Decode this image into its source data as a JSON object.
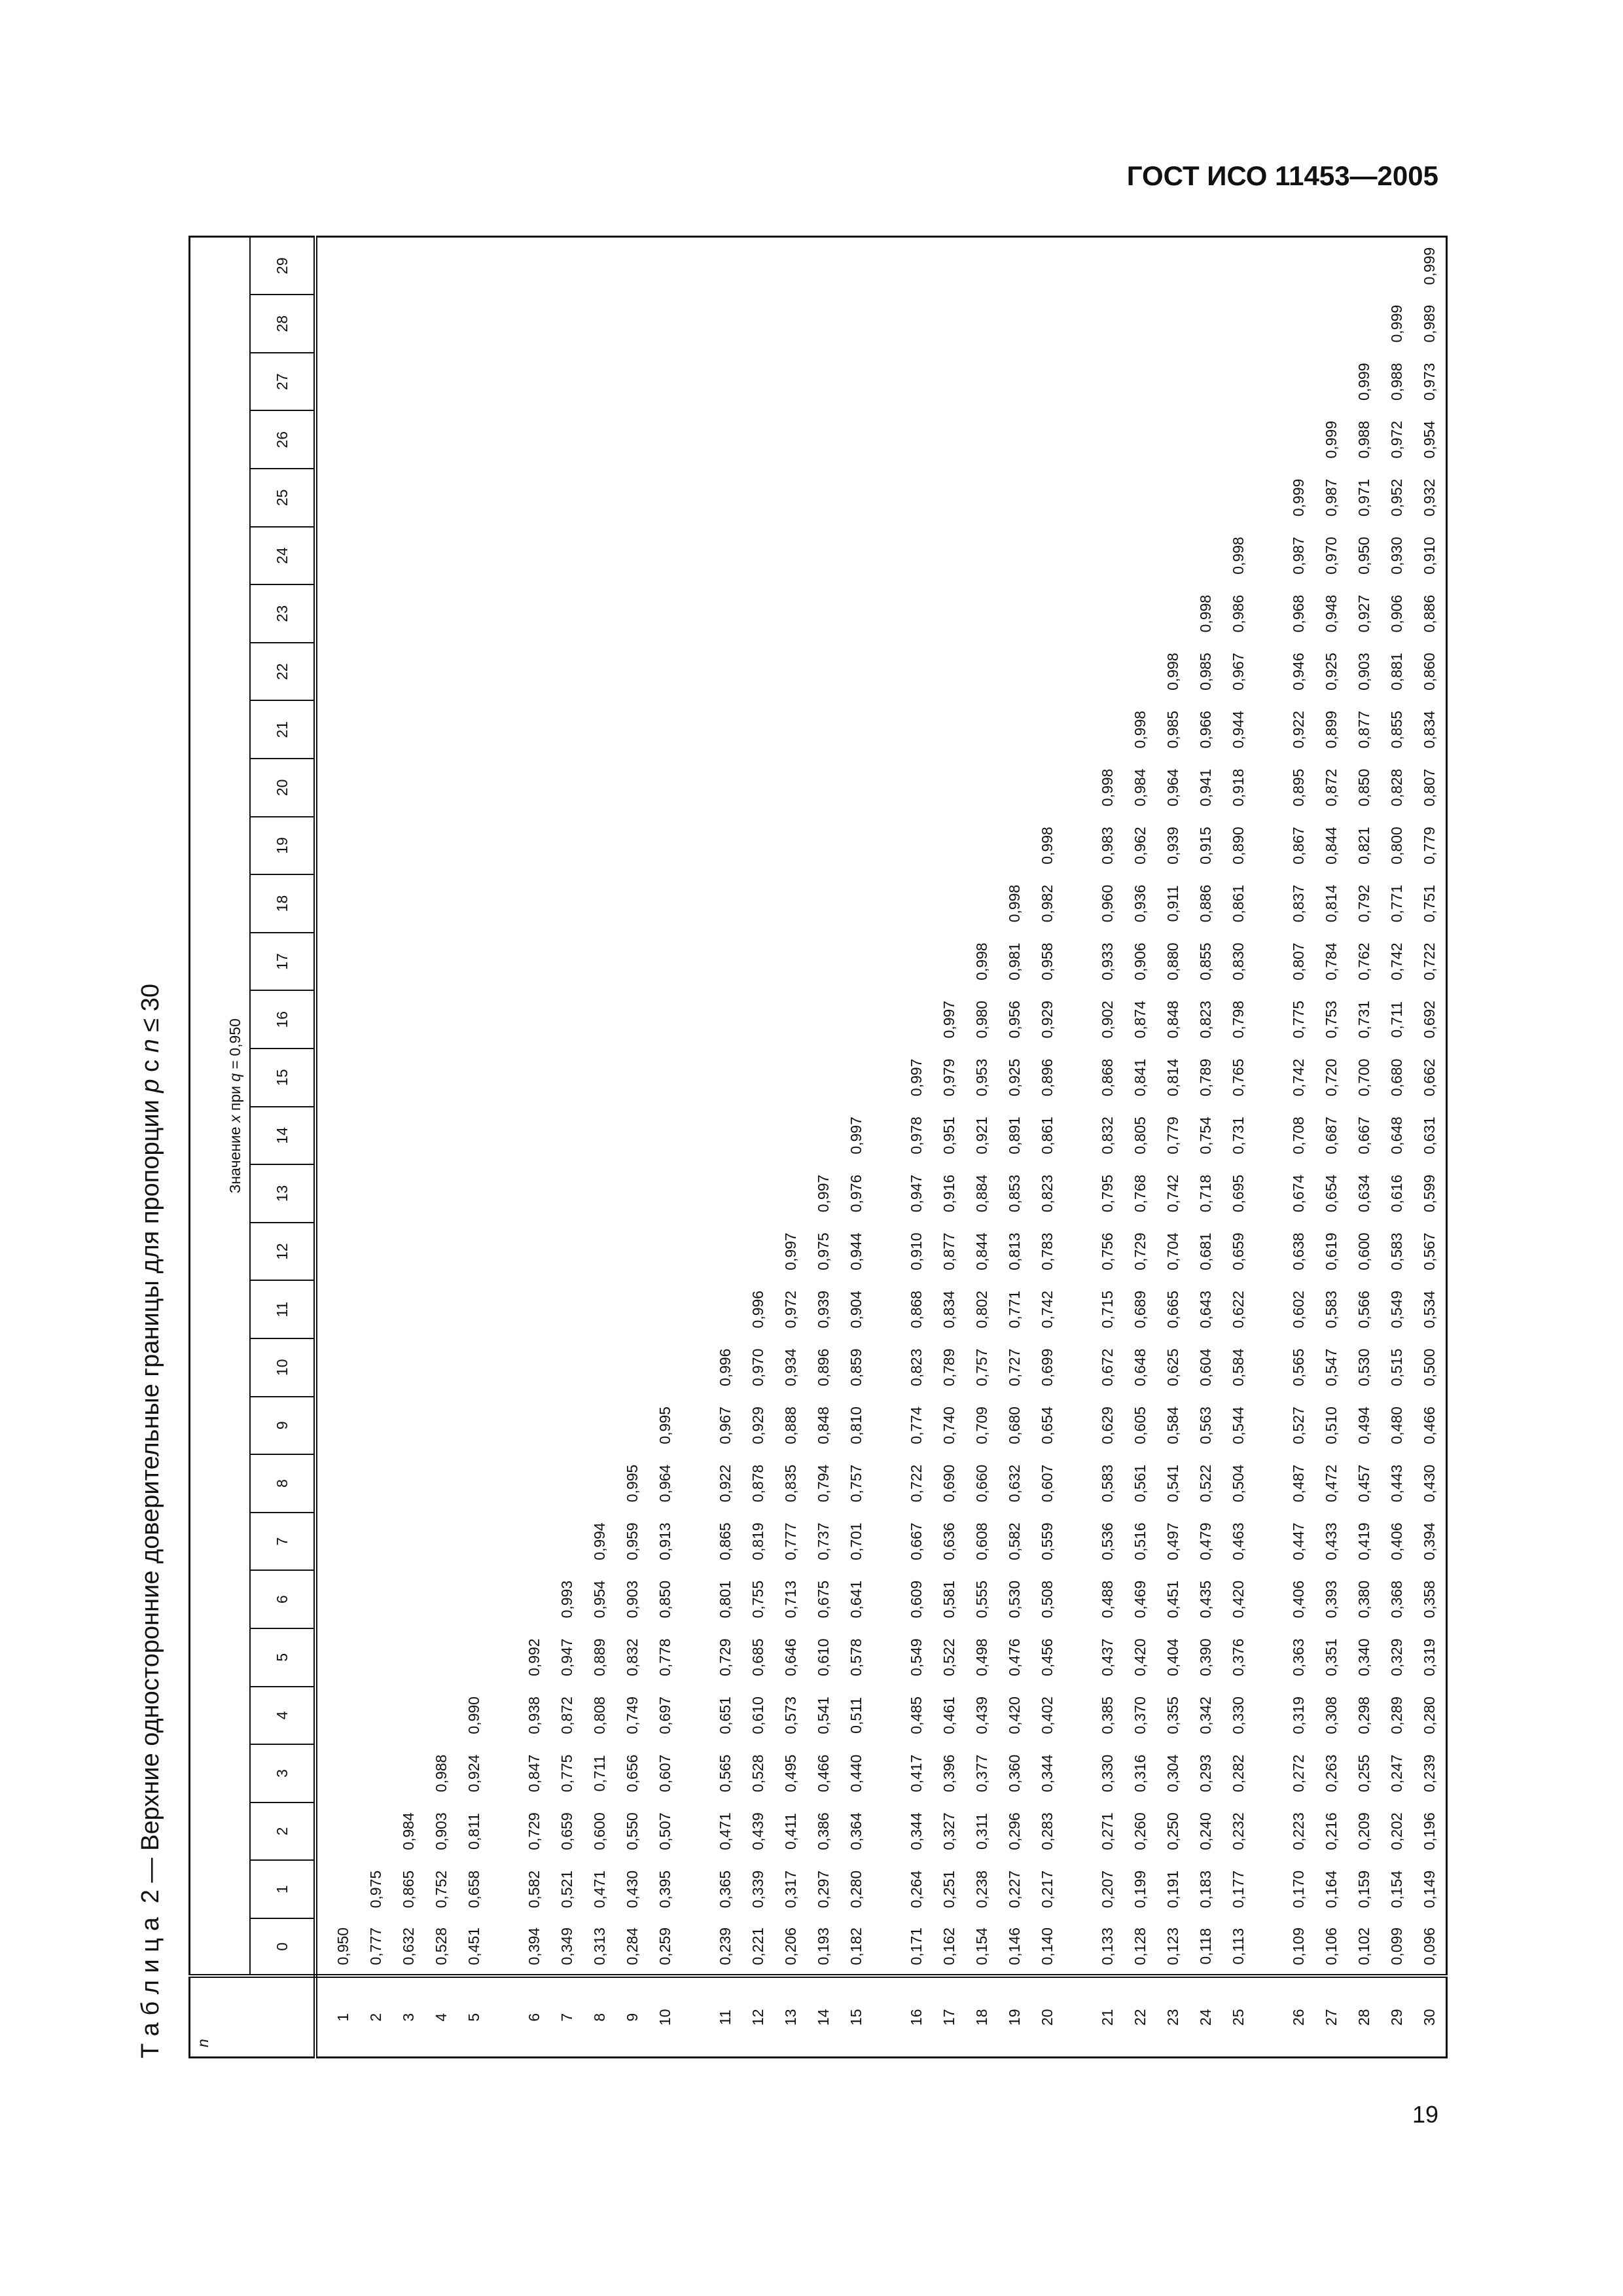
{
  "header": {
    "title": "ГОСТ ИСО 11453—2005"
  },
  "table": {
    "caption": [
      "Т а б л и ц а  2 — Верхние односторонние доверительные границы для пропорции ",
      "p",
      " с ",
      "n",
      " ≤ 30"
    ],
    "row_header": "n",
    "column_group": [
      "Значение ",
      "x",
      " при ",
      "q",
      " = 0,950"
    ],
    "columns": [
      0,
      1,
      2,
      3,
      4,
      5,
      6,
      7,
      8,
      9,
      10,
      11,
      12,
      13,
      14,
      15,
      16,
      17,
      18,
      19,
      20,
      21,
      22,
      23,
      24,
      25,
      26,
      27,
      28,
      29
    ],
    "rows": [
      {
        "n": 1,
        "values": [
          "0,950"
        ]
      },
      {
        "n": 2,
        "values": [
          "0,777",
          "0,975"
        ]
      },
      {
        "n": 3,
        "values": [
          "0,632",
          "0,865",
          "0,984"
        ]
      },
      {
        "n": 4,
        "values": [
          "0,528",
          "0,752",
          "0,903",
          "0,988"
        ]
      },
      {
        "n": 5,
        "values": [
          "0,451",
          "0,658",
          "0,811",
          "0,924",
          "0,990"
        ]
      },
      {
        "n": 6,
        "values": [
          "0,394",
          "0,582",
          "0,729",
          "0,847",
          "0,938",
          "0,992"
        ]
      },
      {
        "n": 7,
        "values": [
          "0,349",
          "0,521",
          "0,659",
          "0,775",
          "0,872",
          "0,947",
          "0,993"
        ]
      },
      {
        "n": 8,
        "values": [
          "0,313",
          "0,471",
          "0,600",
          "0,711",
          "0,808",
          "0,889",
          "0,954",
          "0,994"
        ]
      },
      {
        "n": 9,
        "values": [
          "0,284",
          "0,430",
          "0,550",
          "0,656",
          "0,749",
          "0,832",
          "0,903",
          "0,959",
          "0,995"
        ]
      },
      {
        "n": 10,
        "values": [
          "0,259",
          "0,395",
          "0,507",
          "0,607",
          "0,697",
          "0,778",
          "0,850",
          "0,913",
          "0,964",
          "0,995"
        ]
      },
      {
        "n": 11,
        "values": [
          "0,239",
          "0,365",
          "0,471",
          "0,565",
          "0,651",
          "0,729",
          "0,801",
          "0,865",
          "0,922",
          "0,967",
          "0,996"
        ]
      },
      {
        "n": 12,
        "values": [
          "0,221",
          "0,339",
          "0,439",
          "0,528",
          "0,610",
          "0,685",
          "0,755",
          "0,819",
          "0,878",
          "0,929",
          "0,970",
          "0,996"
        ]
      },
      {
        "n": 13,
        "values": [
          "0,206",
          "0,317",
          "0,411",
          "0,495",
          "0,573",
          "0,646",
          "0,713",
          "0,777",
          "0,835",
          "0,888",
          "0,934",
          "0,972",
          "0,997"
        ]
      },
      {
        "n": 14,
        "values": [
          "0,193",
          "0,297",
          "0,386",
          "0,466",
          "0,541",
          "0,610",
          "0,675",
          "0,737",
          "0,794",
          "0,848",
          "0,896",
          "0,939",
          "0,975",
          "0,997"
        ]
      },
      {
        "n": 15,
        "values": [
          "0,182",
          "0,280",
          "0,364",
          "0,440",
          "0,511",
          "0,578",
          "0,641",
          "0,701",
          "0,757",
          "0,810",
          "0,859",
          "0,904",
          "0,944",
          "0,976",
          "0,997"
        ]
      },
      {
        "n": 16,
        "values": [
          "0,171",
          "0,264",
          "0,344",
          "0,417",
          "0,485",
          "0,549",
          "0,609",
          "0,667",
          "0,722",
          "0,774",
          "0,823",
          "0,868",
          "0,910",
          "0,947",
          "0,978",
          "0,997"
        ]
      },
      {
        "n": 17,
        "values": [
          "0,162",
          "0,251",
          "0,327",
          "0,396",
          "0,461",
          "0,522",
          "0,581",
          "0,636",
          "0,690",
          "0,740",
          "0,789",
          "0,834",
          "0,877",
          "0,916",
          "0,951",
          "0,979",
          "0,997"
        ]
      },
      {
        "n": 18,
        "values": [
          "0,154",
          "0,238",
          "0,311",
          "0,377",
          "0,439",
          "0,498",
          "0,555",
          "0,608",
          "0,660",
          "0,709",
          "0,757",
          "0,802",
          "0,844",
          "0,884",
          "0,921",
          "0,953",
          "0,980",
          "0,998"
        ]
      },
      {
        "n": 19,
        "values": [
          "0,146",
          "0,227",
          "0,296",
          "0,360",
          "0,420",
          "0,476",
          "0,530",
          "0,582",
          "0,632",
          "0,680",
          "0,727",
          "0,771",
          "0,813",
          "0,853",
          "0,891",
          "0,925",
          "0,956",
          "0,981",
          "0,998"
        ]
      },
      {
        "n": 20,
        "values": [
          "0,140",
          "0,217",
          "0,283",
          "0,344",
          "0,402",
          "0,456",
          "0,508",
          "0,559",
          "0,607",
          "0,654",
          "0,699",
          "0,742",
          "0,783",
          "0,823",
          "0,861",
          "0,896",
          "0,929",
          "0,958",
          "0,982",
          "0,998"
        ]
      },
      {
        "n": 21,
        "values": [
          "0,133",
          "0,207",
          "0,271",
          "0,330",
          "0,385",
          "0,437",
          "0,488",
          "0,536",
          "0,583",
          "0,629",
          "0,672",
          "0,715",
          "0,756",
          "0,795",
          "0,832",
          "0,868",
          "0,902",
          "0,933",
          "0,960",
          "0,983",
          "0,998"
        ]
      },
      {
        "n": 22,
        "values": [
          "0,128",
          "0,199",
          "0,260",
          "0,316",
          "0,370",
          "0,420",
          "0,469",
          "0,516",
          "0,561",
          "0,605",
          "0,648",
          "0,689",
          "0,729",
          "0,768",
          "0,805",
          "0,841",
          "0,874",
          "0,906",
          "0,936",
          "0,962",
          "0,984",
          "0,998"
        ]
      },
      {
        "n": 23,
        "values": [
          "0,123",
          "0,191",
          "0,250",
          "0,304",
          "0,355",
          "0,404",
          "0,451",
          "0,497",
          "0,541",
          "0,584",
          "0,625",
          "0,665",
          "0,704",
          "0,742",
          "0,779",
          "0,814",
          "0,848",
          "0,880",
          "0,911",
          "0,939",
          "0,964",
          "0,985",
          "0,998"
        ]
      },
      {
        "n": 24,
        "values": [
          "0,118",
          "0,183",
          "0,240",
          "0,293",
          "0,342",
          "0,390",
          "0,435",
          "0,479",
          "0,522",
          "0,563",
          "0,604",
          "0,643",
          "0,681",
          "0,718",
          "0,754",
          "0,789",
          "0,823",
          "0,855",
          "0,886",
          "0,915",
          "0,941",
          "0,966",
          "0,985",
          "0,998"
        ]
      },
      {
        "n": 25,
        "values": [
          "0,113",
          "0,177",
          "0,232",
          "0,282",
          "0,330",
          "0,376",
          "0,420",
          "0,463",
          "0,504",
          "0,544",
          "0,584",
          "0,622",
          "0,659",
          "0,695",
          "0,731",
          "0,765",
          "0,798",
          "0,830",
          "0,861",
          "0,890",
          "0,918",
          "0,944",
          "0,967",
          "0,986",
          "0,998"
        ]
      },
      {
        "n": 26,
        "values": [
          "0,109",
          "0,170",
          "0,223",
          "0,272",
          "0,319",
          "0,363",
          "0,406",
          "0,447",
          "0,487",
          "0,527",
          "0,565",
          "0,602",
          "0,638",
          "0,674",
          "0,708",
          "0,742",
          "0,775",
          "0,807",
          "0,837",
          "0,867",
          "0,895",
          "0,922",
          "0,946",
          "0,968",
          "0,987",
          "0,999"
        ]
      },
      {
        "n": 27,
        "values": [
          "0,106",
          "0,164",
          "0,216",
          "0,263",
          "0,308",
          "0,351",
          "0,393",
          "0,433",
          "0,472",
          "0,510",
          "0,547",
          "0,583",
          "0,619",
          "0,654",
          "0,687",
          "0,720",
          "0,753",
          "0,784",
          "0,814",
          "0,844",
          "0,872",
          "0,899",
          "0,925",
          "0,948",
          "0,970",
          "0,987",
          "0,999"
        ]
      },
      {
        "n": 28,
        "values": [
          "0,102",
          "0,159",
          "0,209",
          "0,255",
          "0,298",
          "0,340",
          "0,380",
          "0,419",
          "0,457",
          "0,494",
          "0,530",
          "0,566",
          "0,600",
          "0,634",
          "0,667",
          "0,700",
          "0,731",
          "0,762",
          "0,792",
          "0,821",
          "0,850",
          "0,877",
          "0,903",
          "0,927",
          "0,950",
          "0,971",
          "0,988",
          "0,999"
        ]
      },
      {
        "n": 29,
        "values": [
          "0,099",
          "0,154",
          "0,202",
          "0,247",
          "0,289",
          "0,329",
          "0,368",
          "0,406",
          "0,443",
          "0,480",
          "0,515",
          "0,549",
          "0,583",
          "0,616",
          "0,648",
          "0,680",
          "0,711",
          "0,742",
          "0,771",
          "0,800",
          "0,828",
          "0,855",
          "0,881",
          "0,906",
          "0,930",
          "0,952",
          "0,972",
          "0,988",
          "0,999"
        ]
      },
      {
        "n": 30,
        "values": [
          "0,096",
          "0,149",
          "0,196",
          "0,239",
          "0,280",
          "0,319",
          "0,358",
          "0,394",
          "0,430",
          "0,466",
          "0,500",
          "0,534",
          "0,567",
          "0,599",
          "0,631",
          "0,662",
          "0,692",
          "0,722",
          "0,751",
          "0,779",
          "0,807",
          "0,834",
          "0,860",
          "0,886",
          "0,910",
          "0,932",
          "0,954",
          "0,973",
          "0,989",
          "0,999"
        ]
      }
    ]
  },
  "page_number": "19"
}
